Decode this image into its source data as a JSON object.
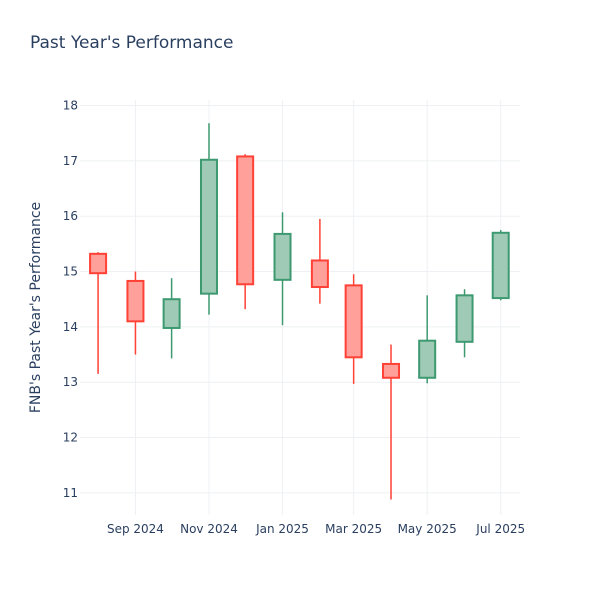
{
  "chart_data": {
    "type": "candlestick",
    "title": "Past Year's Performance",
    "ylabel": "FNB's Past Year's Performance",
    "xlabel": "",
    "ylim": [
      10.6,
      18.1
    ],
    "yticks": [
      11,
      12,
      13,
      14,
      15,
      16,
      17,
      18
    ],
    "xlim": [
      "2024-07-17",
      "2025-07-17"
    ],
    "xticks": [
      {
        "date": "2024-09-01",
        "label": "Sep 2024"
      },
      {
        "date": "2024-11-01",
        "label": "Nov 2024"
      },
      {
        "date": "2025-01-01",
        "label": "Jan 2025"
      },
      {
        "date": "2025-03-01",
        "label": "Mar 2025"
      },
      {
        "date": "2025-05-01",
        "label": "May 2025"
      },
      {
        "date": "2025-07-01",
        "label": "Jul 2025"
      }
    ],
    "grid": true,
    "colors": {
      "increasing_line": "#3d9970",
      "increasing_fill": "#9fcab5",
      "decreasing_line": "#ff4136",
      "decreasing_fill": "#ffa09b",
      "grid": "#eef0f3"
    },
    "candles": [
      {
        "date": "2024-08-01",
        "open": 15.32,
        "high": 15.35,
        "low": 13.15,
        "close": 14.97
      },
      {
        "date": "2024-09-01",
        "open": 14.83,
        "high": 15.0,
        "low": 13.5,
        "close": 14.1
      },
      {
        "date": "2024-10-01",
        "open": 13.98,
        "high": 14.88,
        "low": 13.43,
        "close": 14.5
      },
      {
        "date": "2024-11-01",
        "open": 14.6,
        "high": 17.68,
        "low": 14.22,
        "close": 17.02
      },
      {
        "date": "2024-12-01",
        "open": 17.08,
        "high": 17.12,
        "low": 14.32,
        "close": 14.77
      },
      {
        "date": "2025-01-01",
        "open": 14.85,
        "high": 16.07,
        "low": 14.03,
        "close": 15.68
      },
      {
        "date": "2025-02-01",
        "open": 15.2,
        "high": 15.95,
        "low": 14.42,
        "close": 14.72
      },
      {
        "date": "2025-03-01",
        "open": 14.75,
        "high": 14.95,
        "low": 12.97,
        "close": 13.45
      },
      {
        "date": "2025-04-01",
        "open": 13.33,
        "high": 13.68,
        "low": 10.88,
        "close": 13.08
      },
      {
        "date": "2025-05-01",
        "open": 13.08,
        "high": 14.57,
        "low": 12.98,
        "close": 13.75
      },
      {
        "date": "2025-06-01",
        "open": 13.73,
        "high": 14.68,
        "low": 13.45,
        "close": 14.57
      },
      {
        "date": "2025-07-01",
        "open": 14.52,
        "high": 15.75,
        "low": 14.48,
        "close": 15.7
      }
    ]
  }
}
